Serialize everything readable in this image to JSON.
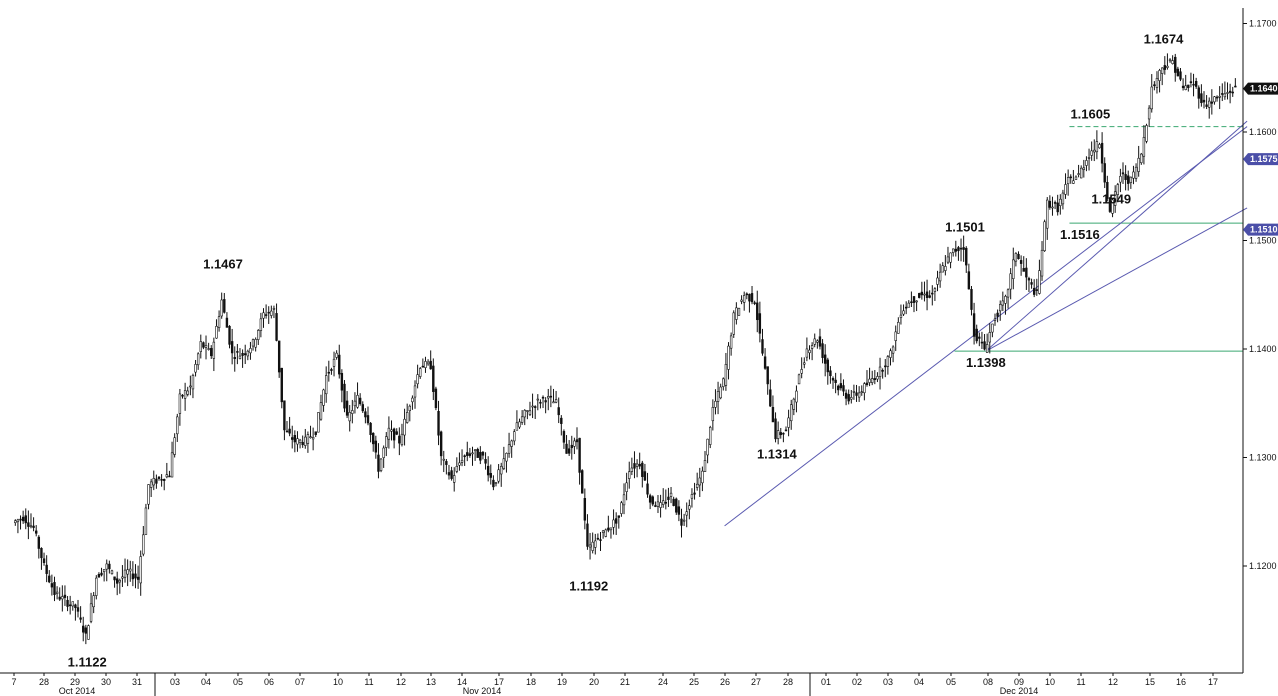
{
  "chart_data": {
    "type": "line",
    "title": "",
    "xlabel": "",
    "ylabel": "",
    "ylim": [
      1.108,
      1.172
    ],
    "y_ticks": [
      "1.1200",
      "1.1300",
      "1.1400",
      "1.1500",
      "1.1600",
      "1.1700"
    ],
    "x_ticks": [
      "7",
      "28",
      "29",
      "30",
      "31",
      "03",
      "04",
      "05",
      "06",
      "07",
      "10",
      "11",
      "12",
      "13",
      "14",
      "17",
      "18",
      "19",
      "20",
      "21",
      "24",
      "25",
      "26",
      "27",
      "28",
      "01",
      "02",
      "03",
      "04",
      "05",
      "08",
      "09",
      "10",
      "11",
      "12",
      "15",
      "16",
      "17"
    ],
    "months": [
      "Oct 2014",
      "Nov 2014",
      "Dec 2014"
    ],
    "series": [
      {
        "values": [
          [
            0,
            1.124
          ],
          [
            1,
            1.1245
          ],
          [
            2,
            1.1235
          ],
          [
            3,
            1.12
          ],
          [
            4,
            1.1175
          ],
          [
            5,
            1.1168
          ],
          [
            6,
            1.1162
          ],
          [
            7,
            1.1135
          ],
          [
            8,
            1.119
          ],
          [
            9,
            1.12
          ],
          [
            10,
            1.1185
          ],
          [
            11,
            1.1195
          ],
          [
            12,
            1.1188
          ],
          [
            13,
            1.1275
          ],
          [
            14,
            1.128
          ],
          [
            15,
            1.1285
          ],
          [
            16,
            1.1355
          ],
          [
            17,
            1.1365
          ],
          [
            18,
            1.1405
          ],
          [
            19,
            1.1395
          ],
          [
            20,
            1.1445
          ],
          [
            21,
            1.1395
          ],
          [
            22,
            1.1395
          ],
          [
            23,
            1.1405
          ],
          [
            24,
            1.1432
          ],
          [
            25,
            1.1436
          ],
          [
            26,
            1.1325
          ],
          [
            27,
            1.1315
          ],
          [
            28,
            1.1315
          ],
          [
            29,
            1.1325
          ],
          [
            30,
            1.1375
          ],
          [
            31,
            1.1393
          ],
          [
            32,
            1.1335
          ],
          [
            33,
            1.1355
          ],
          [
            34,
            1.1335
          ],
          [
            35,
            1.129
          ],
          [
            36,
            1.1325
          ],
          [
            37,
            1.1315
          ],
          [
            38,
            1.135
          ],
          [
            39,
            1.1385
          ],
          [
            40,
            1.1385
          ],
          [
            41,
            1.13
          ],
          [
            42,
            1.128
          ],
          [
            43,
            1.13
          ],
          [
            44,
            1.1305
          ],
          [
            45,
            1.13
          ],
          [
            46,
            1.1275
          ],
          [
            47,
            1.1295
          ],
          [
            48,
            1.1325
          ],
          [
            49,
            1.134
          ],
          [
            50,
            1.135
          ],
          [
            51,
            1.1355
          ],
          [
            52,
            1.135
          ],
          [
            53,
            1.1305
          ],
          [
            54,
            1.1315
          ],
          [
            55,
            1.1215
          ],
          [
            56,
            1.1225
          ],
          [
            57,
            1.1235
          ],
          [
            58,
            1.1245
          ],
          [
            59,
            1.129
          ],
          [
            60,
            1.1295
          ],
          [
            61,
            1.126
          ],
          [
            62,
            1.1255
          ],
          [
            63,
            1.1265
          ],
          [
            64,
            1.124
          ],
          [
            65,
            1.1265
          ],
          [
            66,
            1.1285
          ],
          [
            67,
            1.1345
          ],
          [
            68,
            1.137
          ],
          [
            69,
            1.143
          ],
          [
            70,
            1.145
          ],
          [
            71,
            1.1445
          ],
          [
            72,
            1.138
          ],
          [
            73,
            1.132
          ],
          [
            74,
            1.1325
          ],
          [
            75,
            1.1365
          ],
          [
            76,
            1.14
          ],
          [
            77,
            1.141
          ],
          [
            78,
            1.138
          ],
          [
            79,
            1.1365
          ],
          [
            80,
            1.1355
          ],
          [
            81,
            1.136
          ],
          [
            82,
            1.137
          ],
          [
            83,
            1.138
          ],
          [
            84,
            1.1395
          ],
          [
            85,
            1.1435
          ],
          [
            86,
            1.1445
          ],
          [
            87,
            1.145
          ],
          [
            88,
            1.145
          ],
          [
            89,
            1.1475
          ],
          [
            90,
            1.149
          ],
          [
            91,
            1.1495
          ],
          [
            92,
            1.1415
          ],
          [
            93,
            1.14
          ],
          [
            94,
            1.143
          ],
          [
            95,
            1.1445
          ],
          [
            96,
            1.149
          ],
          [
            97,
            1.1465
          ],
          [
            98,
            1.145
          ],
          [
            99,
            1.1535
          ],
          [
            100,
            1.153
          ],
          [
            101,
            1.1555
          ],
          [
            102,
            1.156
          ],
          [
            103,
            1.158
          ],
          [
            104,
            1.159
          ],
          [
            105,
            1.1525
          ],
          [
            106,
            1.156
          ],
          [
            107,
            1.1555
          ],
          [
            108,
            1.158
          ],
          [
            109,
            1.164
          ],
          [
            110,
            1.166
          ],
          [
            111,
            1.1665
          ],
          [
            112,
            1.164
          ],
          [
            113,
            1.1645
          ],
          [
            114,
            1.1625
          ],
          [
            115,
            1.163
          ],
          [
            116,
            1.1635
          ],
          [
            117,
            1.164
          ]
        ]
      }
    ],
    "annotations": [
      {
        "text": "1.1122",
        "x": 7,
        "y": 1.1122
      },
      {
        "text": "1.1467",
        "x": 20,
        "y": 1.1467
      },
      {
        "text": "1.1192",
        "x": 55,
        "y": 1.1192
      },
      {
        "text": "1.1314",
        "x": 73,
        "y": 1.1314
      },
      {
        "text": "1.1398",
        "x": 93,
        "y": 1.1398
      },
      {
        "text": "1.1501",
        "x": 91,
        "y": 1.1501
      },
      {
        "text": "1.1516",
        "x": 102,
        "y": 1.1516
      },
      {
        "text": "1.1549",
        "x": 105,
        "y": 1.1549
      },
      {
        "text": "1.1605",
        "x": 103,
        "y": 1.1605
      },
      {
        "text": "1.1674",
        "x": 110,
        "y": 1.1674
      }
    ],
    "price_tags": [
      {
        "text": "1.1640",
        "y": 1.164,
        "color": "#111111"
      },
      {
        "text": "1.1575",
        "y": 1.1575,
        "color": "#4b4fa8"
      },
      {
        "text": "1.1510",
        "y": 1.151,
        "color": "#4b4fa8"
      }
    ],
    "trend_lines": [
      {
        "from": [
          68,
          1.1237
        ],
        "to": [
          118,
          1.1605
        ],
        "color": "#5a5ab0"
      },
      {
        "from": [
          93,
          1.1398
        ],
        "to": [
          118,
          1.161
        ],
        "color": "#5a5ab0"
      },
      {
        "from": [
          93,
          1.1398
        ],
        "to": [
          118,
          1.153
        ],
        "color": "#5a5ab0"
      }
    ],
    "horizontal_lines": [
      {
        "y": 1.1398,
        "from": 90,
        "style": "solid",
        "color": "#3aa870"
      },
      {
        "y": 1.1516,
        "from": 101,
        "style": "solid",
        "color": "#3aa870"
      },
      {
        "y": 1.1605,
        "from": 101,
        "style": "dashed",
        "color": "#3aa870"
      }
    ],
    "grid": false
  }
}
